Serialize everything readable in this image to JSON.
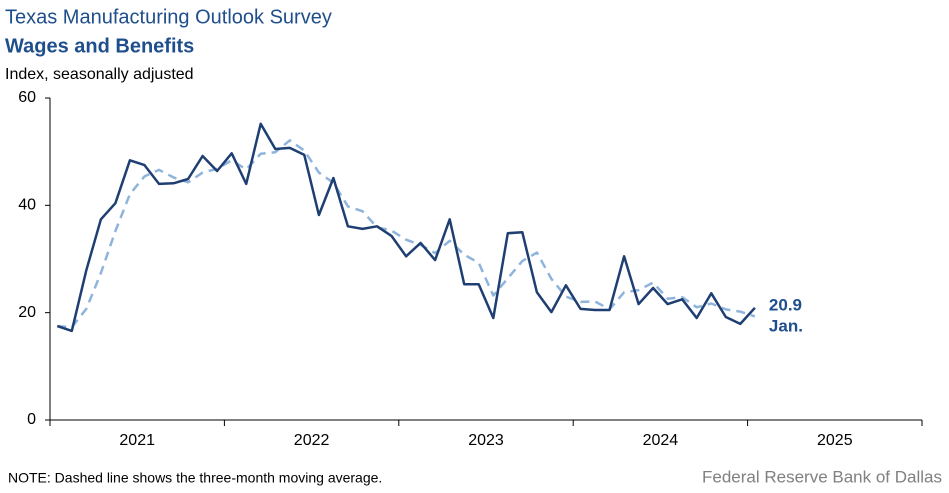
{
  "chart_data": {
    "type": "line",
    "title": "Texas Manufacturing Outlook Survey",
    "subtitle": "Wages and Benefits",
    "y_label": "Index, seasonally adjusted",
    "note": "NOTE: Dashed line shows the three-month  moving average.",
    "source": "Federal Reserve Bank of Dallas",
    "categories": [
      "2021",
      "2022",
      "2023",
      "2024",
      "2025"
    ],
    "xlim": [
      2021,
      2026
    ],
    "xticks": [
      2021,
      2022,
      2023,
      2024,
      2025,
      2026
    ],
    "ylim": [
      0,
      60
    ],
    "yticks": [
      0,
      20,
      40,
      60
    ],
    "x": [
      2021.042,
      2021.125,
      2021.208,
      2021.292,
      2021.375,
      2021.458,
      2021.542,
      2021.625,
      2021.708,
      2021.792,
      2021.875,
      2021.958,
      2022.042,
      2022.125,
      2022.208,
      2022.292,
      2022.375,
      2022.458,
      2022.542,
      2022.625,
      2022.708,
      2022.792,
      2022.875,
      2022.958,
      2023.042,
      2023.125,
      2023.208,
      2023.292,
      2023.375,
      2023.458,
      2023.542,
      2023.625,
      2023.708,
      2023.792,
      2023.875,
      2023.958,
      2024.042,
      2024.125,
      2024.208,
      2024.292,
      2024.375,
      2024.458,
      2024.542,
      2024.625,
      2024.708,
      2024.792,
      2024.875,
      2024.958,
      2025.042
    ],
    "series": [
      {
        "name": "Wages and Benefits",
        "color": "#1f3f73",
        "dashed": false,
        "values": [
          17.5,
          16.6,
          27.9,
          37.4,
          40.4,
          48.4,
          47.5,
          44.0,
          44.1,
          44.9,
          49.2,
          46.4,
          49.7,
          44.0,
          55.2,
          50.5,
          50.7,
          49.4,
          38.2,
          45.1,
          36.1,
          35.6,
          36.1,
          34.3,
          30.5,
          33.0,
          29.8,
          37.4,
          25.3,
          25.3,
          19.0,
          34.8,
          35.0,
          23.8,
          20.1,
          25.1,
          20.7,
          20.5,
          20.5,
          30.5,
          21.6,
          24.6,
          21.6,
          22.5,
          19.0,
          23.6,
          19.2,
          17.9,
          20.9
        ]
      },
      {
        "name": "Three-month moving average",
        "color": "#8fb4dc",
        "dashed": true,
        "values": [
          17.5,
          17.3,
          20.7,
          27.4,
          35.2,
          42.1,
          45.4,
          46.6,
          45.2,
          44.3,
          46.1,
          46.8,
          48.4,
          46.7,
          49.6,
          49.9,
          52.1,
          50.2,
          46.1,
          44.2,
          39.8,
          38.9,
          35.9,
          35.3,
          33.6,
          32.6,
          31.1,
          33.4,
          30.8,
          29.3,
          23.2,
          26.4,
          29.6,
          31.2,
          26.3,
          23.0,
          22.0,
          22.1,
          20.6,
          23.8,
          24.2,
          25.6,
          22.6,
          22.9,
          21.0,
          21.7,
          20.6,
          20.2,
          19.3
        ]
      }
    ],
    "end_label": {
      "value": 20.9,
      "value_label": "20.9",
      "month": "Jan."
    }
  }
}
